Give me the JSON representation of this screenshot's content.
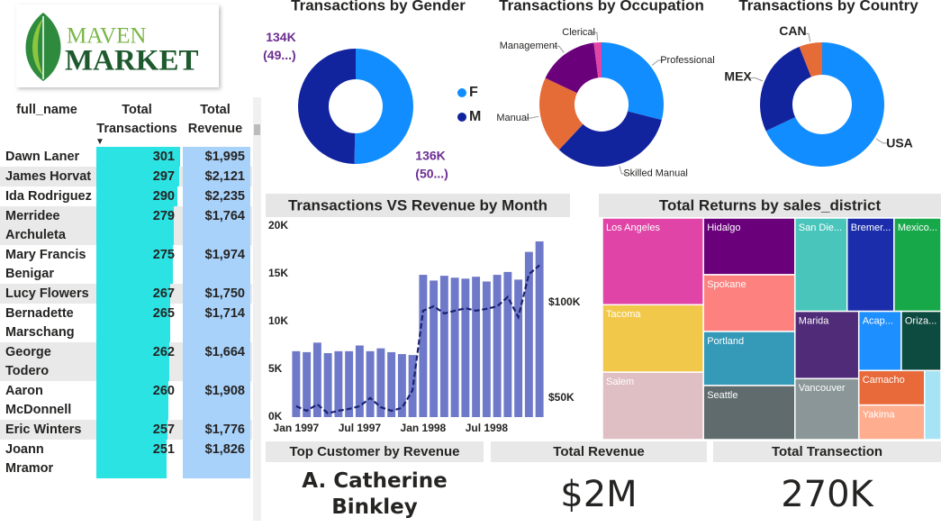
{
  "logo": {
    "line1": "MAVEN",
    "line2": "MARKET"
  },
  "table": {
    "columns": [
      "full_name",
      "Total Transactions",
      "Total Revenue"
    ],
    "rows": [
      [
        "Dawn Laner",
        301,
        "$1,995"
      ],
      [
        "James Horvat",
        297,
        "$2,121"
      ],
      [
        "Ida Rodriguez",
        290,
        "$2,235"
      ],
      [
        "Merridee Archuleta",
        279,
        "$1,764"
      ],
      [
        "Mary Francis Benigar",
        275,
        "$1,974"
      ],
      [
        "Lucy Flowers",
        267,
        "$1,750"
      ],
      [
        "Bernadette Marschang",
        265,
        "$1,714"
      ],
      [
        "George Todero",
        262,
        "$1,664"
      ],
      [
        "Aaron McDonnell",
        260,
        "$1,908"
      ],
      [
        "Eric Winters",
        257,
        "$1,776"
      ],
      [
        "Joann Mramor",
        251,
        "$1,826"
      ]
    ]
  },
  "chart_data": [
    {
      "type": "donut",
      "title": "Transactions by Gender",
      "categories": [
        "F",
        "M"
      ],
      "values": [
        136000,
        134000
      ],
      "value_labels": [
        "136K",
        "134K"
      ],
      "percent_labels": [
        "(50...)",
        "(49...)"
      ],
      "colors": [
        "#118dff",
        "#12239e"
      ],
      "legend": true
    },
    {
      "type": "donut",
      "title": "Transactions by Occupation",
      "categories": [
        "Professional",
        "Skilled Manual",
        "Manual",
        "Management",
        "Clerical"
      ],
      "values": [
        29,
        33,
        20,
        16,
        2
      ],
      "colors": [
        "#118dff",
        "#12239e",
        "#e66c37",
        "#6b007b",
        "#e044a7"
      ],
      "legend": false
    },
    {
      "type": "donut",
      "title": "Transactions by Country",
      "categories": [
        "USA",
        "MEX",
        "CAN"
      ],
      "values": [
        68,
        26,
        6
      ],
      "colors": [
        "#118dff",
        "#12239e",
        "#e66c37"
      ],
      "legend": false
    },
    {
      "type": "bar_line",
      "title": "Transactions VS Revenue by Month",
      "categories": [
        "Jan 1997",
        null,
        null,
        null,
        null,
        null,
        "Jul 1997",
        null,
        null,
        null,
        null,
        null,
        "Jan 1998",
        null,
        null,
        null,
        null,
        null,
        "Jul 1998",
        null,
        null,
        null,
        null,
        null
      ],
      "series": [
        {
          "kind": "bar",
          "color": "#6f79c9",
          "values": [
            6900,
            6800,
            7800,
            6700,
            6900,
            6900,
            7500,
            6900,
            7200,
            6800,
            6600,
            6500,
            14900,
            14300,
            14800,
            14600,
            14500,
            14700,
            14200,
            14900,
            15200,
            14400,
            17300,
            18400
          ]
        },
        {
          "kind": "line",
          "color": "#1a2170",
          "dashed": true,
          "axis": "y2",
          "values": [
            45700,
            43300,
            46700,
            42000,
            43300,
            44300,
            45700,
            50000,
            45200,
            43300,
            44800,
            54000,
            95700,
            98000,
            94300,
            95700,
            97000,
            95700,
            96700,
            98000,
            102900,
            92400,
            114800,
            119500
          ]
        }
      ],
      "ylim": [
        0,
        20000
      ],
      "yticks": [
        {
          "value": 0,
          "label": "0K"
        },
        {
          "value": 5000,
          "label": "5K"
        },
        {
          "value": 10000,
          "label": "10K"
        },
        {
          "value": 15000,
          "label": "15K"
        },
        {
          "value": 20000,
          "label": "20K"
        }
      ],
      "y2lim": [
        40000,
        140000
      ],
      "y2ticks": [
        {
          "value": 50000,
          "label": "$50K"
        },
        {
          "value": 100000,
          "label": "$100K"
        }
      ],
      "grid": false
    },
    {
      "type": "treemap",
      "title": "Total Returns by sales_district",
      "categories": [
        "Los Angeles",
        "Tacoma",
        "Salem",
        "Hidalgo",
        "Spokane",
        "Portland",
        "Seattle",
        "San Die...",
        "Bremer...",
        "Mexico...",
        "Marida",
        "Vancouver",
        "Acap...",
        "Oriza...",
        "Camacho",
        "Yakima",
        null
      ],
      "values": [
        108,
        84,
        84,
        64,
        64,
        61,
        61,
        60,
        54,
        54,
        53,
        48,
        31,
        29,
        28,
        28,
        14
      ],
      "colors": [
        "#e044a7",
        "#f2c84b",
        "#dfbfc4",
        "#6b007b",
        "#fd817e",
        "#3599b8",
        "#5f6b6d",
        "#4ac5bb",
        "#1b2dab",
        "#17a84a",
        "#4f2b78",
        "#8a9697",
        "#1e8fff",
        "#0d4a3f",
        "#e8693a",
        "#fead8e",
        "#a6e3f5"
      ]
    }
  ],
  "cards": [
    {
      "title": "Top Customer by Revenue",
      "value": "A. Catherine Binkley"
    },
    {
      "title": "Total Revenue",
      "value": "$2M"
    },
    {
      "title": "Total Transection",
      "value": "270K"
    }
  ]
}
